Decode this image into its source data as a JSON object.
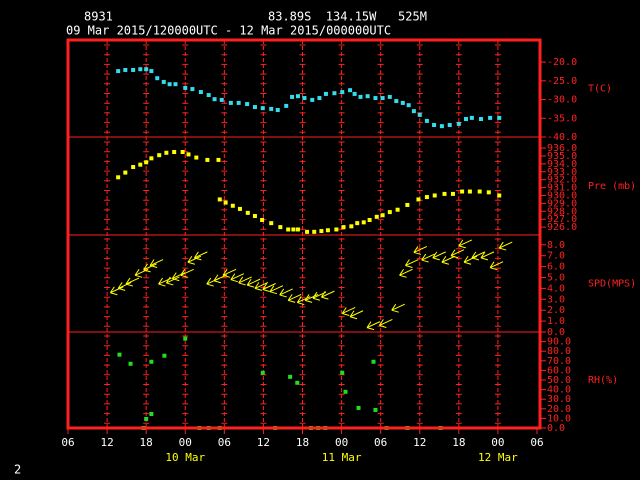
{
  "header": {
    "station": "8931",
    "location": "83.89S  134.15W   525M",
    "period": "09 Mar 2015/120000UTC - 12 Mar 2015/000000UTC",
    "footer": "2"
  },
  "chart_data": [
    {
      "type": "scatter",
      "ylabel": "T(C)",
      "color": "#33ddee",
      "ylim": [
        -40,
        -14.1
      ],
      "yticks": [
        {
          "value": -20,
          "label": "-20.0"
        },
        {
          "value": -25,
          "label": "-25.0"
        },
        {
          "value": -30,
          "label": "-30.0"
        },
        {
          "value": -35,
          "label": "-35.0"
        },
        {
          "value": -40,
          "label": "-40.0"
        }
      ],
      "x": [
        7.7,
        8.8,
        10.0,
        11.1,
        12.0,
        12.8,
        13.7,
        14.7,
        15.6,
        16.5,
        18.0,
        19.1,
        20.4,
        21.6,
        22.5,
        23.6,
        25.0,
        26.2,
        27.5,
        28.7,
        29.9,
        31.2,
        32.2,
        33.5,
        34.4,
        35.3,
        36.3,
        37.5,
        38.6,
        39.6,
        40.9,
        42.1,
        43.3,
        44.0,
        44.9,
        46.0,
        47.2,
        48.3,
        49.4,
        50.4,
        51.4,
        52.3,
        53.1,
        54.0,
        55.1,
        56.2,
        57.4,
        58.6,
        60.0,
        61.1,
        62.0,
        63.4,
        64.8,
        66.2
      ],
      "values": [
        -22.4,
        -22.1,
        -22.1,
        -21.9,
        -21.9,
        -22.4,
        -24.3,
        -25.3,
        -25.9,
        -25.9,
        -26.9,
        -27.2,
        -28.0,
        -28.8,
        -29.9,
        -30.1,
        -30.9,
        -30.9,
        -31.2,
        -32.0,
        -32.3,
        -32.5,
        -32.8,
        -31.7,
        -29.3,
        -29.1,
        -29.6,
        -30.1,
        -29.6,
        -28.5,
        -28.3,
        -28.0,
        -27.5,
        -28.5,
        -29.3,
        -29.1,
        -29.6,
        -29.6,
        -29.3,
        -30.4,
        -30.9,
        -31.5,
        -33.1,
        -34.1,
        -35.7,
        -36.8,
        -37.1,
        -36.8,
        -36.5,
        -35.2,
        -34.9,
        -35.2,
        -34.9,
        -34.9
      ]
    },
    {
      "type": "scatter",
      "ylabel": "Pre (mb)",
      "color": "#ffff00",
      "ylim": [
        925,
        937.4
      ],
      "yticks": [
        {
          "value": 936,
          "label": "936.0"
        },
        {
          "value": 935,
          "label": "935.0"
        },
        {
          "value": 934,
          "label": "934.0"
        },
        {
          "value": 933,
          "label": "933.0"
        },
        {
          "value": 932,
          "label": "932.0"
        },
        {
          "value": 931,
          "label": "931.0"
        },
        {
          "value": 930,
          "label": "930.0"
        },
        {
          "value": 929,
          "label": "929.0"
        },
        {
          "value": 928,
          "label": "928.0"
        },
        {
          "value": 927,
          "label": "927.0"
        },
        {
          "value": 926,
          "label": "926.0"
        }
      ],
      "x": [
        7.7,
        8.8,
        10.0,
        11.1,
        12.0,
        12.8,
        14.0,
        15.1,
        16.3,
        17.6,
        18.5,
        19.7,
        21.4,
        23.1,
        23.3,
        24.2,
        25.3,
        26.4,
        27.6,
        28.7,
        29.8,
        31.2,
        32.6,
        33.8,
        34.6,
        35.3,
        36.7,
        37.8,
        38.9,
        39.9,
        41.2,
        42.3,
        43.5,
        44.4,
        45.4,
        46.3,
        47.4,
        48.3,
        49.4,
        50.6,
        52.1,
        53.8,
        55.1,
        56.3,
        57.8,
        59.1,
        60.5,
        61.7,
        63.2,
        64.6,
        66.2
      ],
      "values": [
        932.3,
        932.9,
        933.6,
        933.9,
        934.2,
        934.7,
        935.1,
        935.4,
        935.5,
        935.5,
        935.2,
        934.8,
        934.5,
        934.5,
        929.5,
        929.1,
        928.7,
        928.3,
        927.8,
        927.4,
        926.9,
        926.5,
        926.0,
        925.7,
        925.7,
        925.7,
        925.4,
        925.4,
        925.5,
        925.6,
        925.7,
        926.0,
        926.1,
        926.5,
        926.6,
        926.9,
        927.3,
        927.5,
        927.9,
        928.2,
        928.8,
        929.5,
        929.8,
        930.0,
        930.2,
        930.2,
        930.5,
        930.5,
        930.5,
        930.4,
        930.0
      ]
    },
    {
      "type": "barb",
      "ylabel": "SPD(MPS)",
      "color": "#ffff00",
      "ylim": [
        0,
        8.9
      ],
      "yticks": [
        {
          "value": 8,
          "label": "8.0"
        },
        {
          "value": 7,
          "label": "7.0"
        },
        {
          "value": 6,
          "label": "6.0"
        },
        {
          "value": 5,
          "label": "5.0"
        },
        {
          "value": 4,
          "label": "4.0"
        },
        {
          "value": 3,
          "label": "3.0"
        },
        {
          "value": 2,
          "label": "2.0"
        },
        {
          "value": 1,
          "label": "1.0"
        },
        {
          "value": 0,
          "label": "0.0"
        }
      ],
      "x": [
        6.5,
        7.7,
        8.9,
        10.3,
        11.6,
        12.6,
        13.9,
        15.1,
        16.0,
        17.3,
        18.4,
        19.4,
        21.3,
        22.4,
        23.8,
        25.0,
        26.2,
        27.5,
        28.7,
        29.9,
        31.0,
        32.5,
        33.8,
        35.2,
        36.4,
        37.6,
        38.9,
        42.1,
        43.3,
        45.9,
        47.8,
        49.7,
        50.9,
        51.8,
        53.1,
        54.3,
        56.0,
        57.4,
        58.8,
        60.0,
        60.8,
        62.0,
        63.4,
        64.8,
        66.2
      ],
      "values": [
        3.6,
        4.0,
        4.4,
        5.2,
        5.7,
        6.1,
        4.4,
        4.5,
        4.9,
        5.2,
        6.4,
        6.8,
        4.4,
        4.7,
        5.2,
        4.8,
        4.5,
        4.3,
        4.0,
        3.9,
        3.7,
        3.4,
        2.9,
        2.7,
        2.9,
        3.1,
        3.2,
        1.7,
        1.4,
        0.4,
        0.6,
        2.0,
        5.2,
        6.1,
        7.3,
        6.6,
        6.8,
        6.4,
        7.0,
        7.9,
        6.4,
        6.8,
        6.8,
        5.9,
        7.7
      ]
    },
    {
      "type": "scatter",
      "ylabel": "RH(%)",
      "color": "#22dd22",
      "ylim": [
        0,
        100
      ],
      "yticks": [
        {
          "value": 90,
          "label": "90.0"
        },
        {
          "value": 80,
          "label": "80.0"
        },
        {
          "value": 70,
          "label": "70.0"
        },
        {
          "value": 60,
          "label": "60.0"
        },
        {
          "value": 50,
          "label": "50.0"
        },
        {
          "value": 40,
          "label": "40.0"
        },
        {
          "value": 30,
          "label": "30.0"
        },
        {
          "value": 20,
          "label": "20.0"
        },
        {
          "value": 10,
          "label": "10.0"
        },
        {
          "value": 0,
          "label": "0.0"
        }
      ],
      "x": [
        7.9,
        9.6,
        11.6,
        12.0,
        12.8,
        12.8,
        14.8,
        18.0,
        20.2,
        21.6,
        23.3,
        29.9,
        31.8,
        34.1,
        35.2,
        37.3,
        38.4,
        39.5,
        42.1,
        42.6,
        44.6,
        46.9,
        47.2,
        48.9,
        52.1,
        57.2
      ],
      "values": [
        76.4,
        66.9,
        0,
        9.4,
        14.6,
        69.0,
        75.3,
        93.1,
        0,
        0,
        0,
        57.5,
        0,
        53.3,
        47.1,
        0,
        0,
        0,
        57.5,
        37.7,
        20.9,
        69.0,
        18.8,
        0,
        0,
        0
      ],
      "xlim": [
        0,
        72
      ],
      "xticks": [
        {
          "value": 0,
          "label": "06"
        },
        {
          "value": 6,
          "label": "12"
        },
        {
          "value": 12,
          "label": "18"
        },
        {
          "value": 18,
          "label": "00"
        },
        {
          "value": 24,
          "label": "06"
        },
        {
          "value": 30,
          "label": "12"
        },
        {
          "value": 36,
          "label": "18"
        },
        {
          "value": 42,
          "label": "00"
        },
        {
          "value": 48,
          "label": "06"
        },
        {
          "value": 54,
          "label": "12"
        },
        {
          "value": 60,
          "label": "18"
        },
        {
          "value": 66,
          "label": "00"
        },
        {
          "value": 72,
          "label": "06"
        }
      ],
      "date_labels": [
        {
          "value": 18,
          "label": "10 Mar"
        },
        {
          "value": 42,
          "label": "11 Mar"
        },
        {
          "value": 66,
          "label": "12 Mar"
        }
      ]
    }
  ]
}
